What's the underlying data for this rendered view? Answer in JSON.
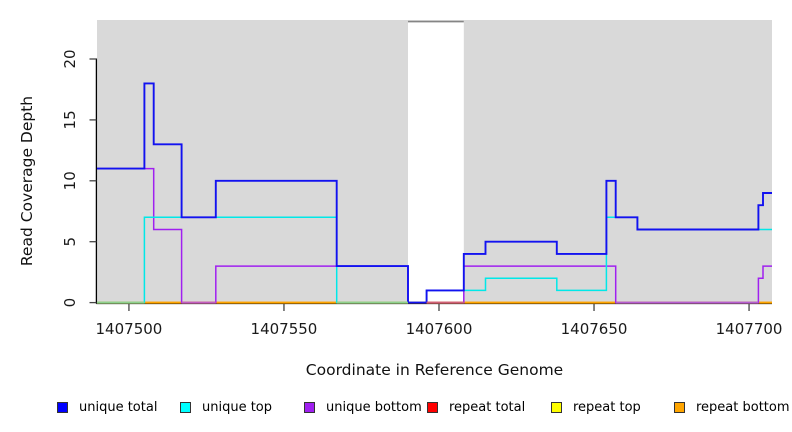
{
  "figure_bg": "#ffffff",
  "panel_bg": "#d9d9d9",
  "chart_data": {
    "type": "line",
    "subtype": "step",
    "title": "",
    "xlabel": "Coordinate in Reference Genome",
    "ylabel": "Read Coverage Depth",
    "x_domain": [
      1407489.7,
      1407707.4
    ],
    "y_domain": [
      0,
      23.2
    ],
    "x_ticks": [
      1407500,
      1407550,
      1407600,
      1407650,
      1407700
    ],
    "x_tick_labels": [
      "1407500",
      "1407550",
      "1407600",
      "1407650",
      "1407700"
    ],
    "y_ticks": [
      0,
      5,
      10,
      15,
      20
    ],
    "y_tick_labels": [
      "0",
      "5",
      "10",
      "15",
      "20"
    ],
    "grid": false,
    "legend_position": "bottom",
    "highlight_region": {
      "x0": 1407590,
      "x1": 1407608,
      "fill": "#ffffff",
      "top_border": "#858585"
    },
    "series": [
      {
        "name": "repeat total",
        "color": "#ff0000",
        "width": 1.4,
        "steps": [
          [
            1407489.7,
            0
          ]
        ],
        "x_end": 1407707.4
      },
      {
        "name": "repeat top",
        "color": "#ffff00",
        "width": 1.4,
        "steps": [
          [
            1407489.7,
            0
          ]
        ],
        "x_end": 1407707.4
      },
      {
        "name": "repeat bottom",
        "color": "#ffa500",
        "width": 2,
        "steps": [
          [
            1407489.7,
            0
          ]
        ],
        "x_end": 1407707.4
      },
      {
        "name": "unique bottom",
        "color": "#a020f0",
        "width": 1.5,
        "steps": [
          [
            1407489.7,
            11
          ],
          [
            1407508,
            6
          ],
          [
            1407517,
            0
          ],
          [
            1407528,
            3
          ],
          [
            1407590,
            0
          ],
          [
            1407608,
            3
          ],
          [
            1407657,
            0
          ],
          [
            1407703,
            2
          ],
          [
            1407704.5,
            3
          ]
        ],
        "x_end": 1407707.4
      },
      {
        "name": "unique top",
        "color": "#00e8e8",
        "width": 1.5,
        "steps": [
          [
            1407489.7,
            0
          ],
          [
            1407505,
            7
          ],
          [
            1407567,
            0
          ],
          [
            1407596,
            1
          ],
          [
            1407615,
            2
          ],
          [
            1407638,
            1
          ],
          [
            1407654,
            7
          ],
          [
            1407664,
            6
          ]
        ],
        "x_end": 1407707.4
      },
      {
        "name": "unique total",
        "color": "#1212f0",
        "width": 1.9,
        "steps": [
          [
            1407489.7,
            11
          ],
          [
            1407505,
            18
          ],
          [
            1407508,
            13
          ],
          [
            1407517,
            7
          ],
          [
            1407528,
            10
          ],
          [
            1407567,
            3
          ],
          [
            1407590,
            0
          ],
          [
            1407596,
            1
          ],
          [
            1407608,
            4
          ],
          [
            1407615,
            5
          ],
          [
            1407638,
            4
          ],
          [
            1407654,
            10
          ],
          [
            1407657,
            7
          ],
          [
            1407664,
            6
          ],
          [
            1407703,
            8
          ],
          [
            1407704.5,
            9
          ]
        ],
        "x_end": 1407707.4
      }
    ],
    "zero_line_overlaps": [
      {
        "x0": 1407489.7,
        "x1": 1407505,
        "color": "#8ed28e"
      },
      {
        "x0": 1407517,
        "x1": 1407528,
        "color": "#c25ec2"
      },
      {
        "x0": 1407567,
        "x1": 1407590,
        "color": "#8ed28e"
      },
      {
        "x0": 1407596,
        "x1": 1407608,
        "color": "#d06078"
      },
      {
        "x0": 1407657,
        "x1": 1407703,
        "color": "#b55fd2"
      }
    ]
  },
  "legend": {
    "items": [
      {
        "label": "unique total",
        "color": "#0000ff"
      },
      {
        "label": "unique top",
        "color": "#00ffff"
      },
      {
        "label": "unique bottom",
        "color": "#a020f0"
      },
      {
        "label": "repeat total",
        "color": "#ff0000"
      },
      {
        "label": "repeat top",
        "color": "#ffff00"
      },
      {
        "label": "repeat bottom",
        "color": "#ffa500"
      }
    ]
  }
}
